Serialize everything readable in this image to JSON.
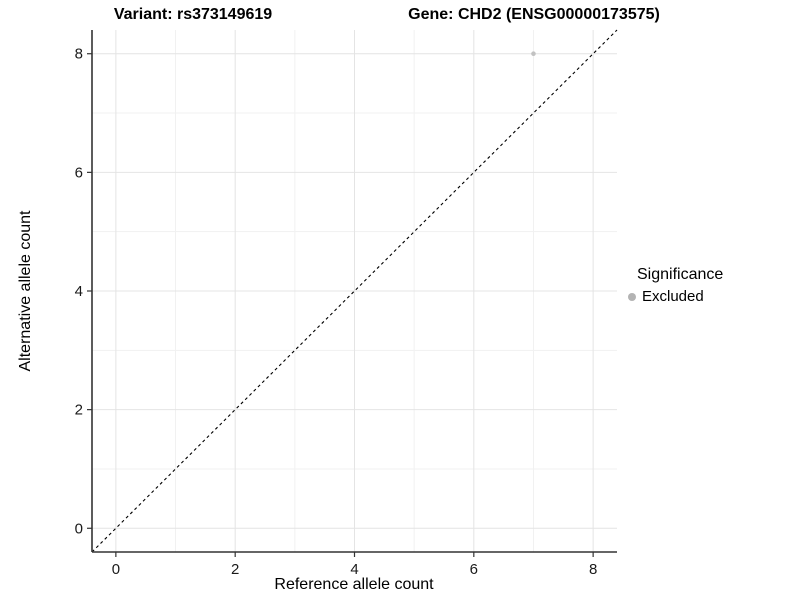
{
  "chart_data": {
    "type": "scatter",
    "title_left": "Variant: rs373149619",
    "title_right": "Gene: CHD2 (ENSG00000173575)",
    "xlabel": "Reference allele count",
    "ylabel": "Alternative allele count",
    "xlim": [
      -0.4,
      8.4
    ],
    "ylim": [
      -0.4,
      8.4
    ],
    "x_major_ticks": [
      0,
      2,
      4,
      6,
      8
    ],
    "y_major_ticks": [
      0,
      2,
      4,
      6,
      8
    ],
    "x_minor_ticks": [
      1,
      3,
      5,
      7
    ],
    "y_minor_ticks": [
      1,
      3,
      5,
      7
    ],
    "grid": "major and minor, light grey on white",
    "legend_position": "right",
    "legend_title": "Significance",
    "series": [
      {
        "name": "Excluded",
        "color": "#b9b9b9",
        "points": [
          {
            "x": 7,
            "y": 8
          }
        ]
      }
    ],
    "reference_line": {
      "kind": "identity y = x",
      "style": "dashed",
      "color": "#000000"
    },
    "colors": {
      "grid_major": "#e4e4e4",
      "grid_minor": "#f1f1f1",
      "axis_line": "#333333",
      "point": "#c2c2c2",
      "legend_key": "#b3b3b3"
    }
  }
}
